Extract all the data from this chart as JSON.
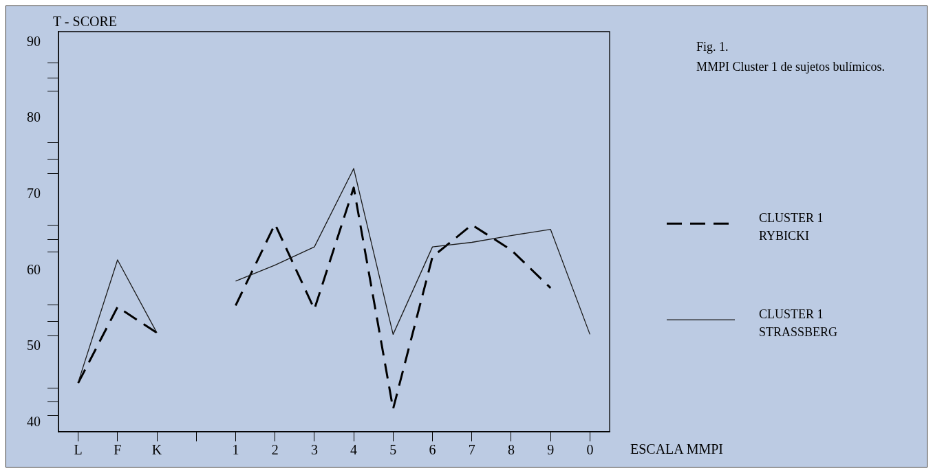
{
  "chart_data": {
    "type": "line",
    "title": "Fig. 1.",
    "subtitle": "MMPI Cluster 1 de sujetos bulímicos.",
    "xlabel": "ESCALA MMPI",
    "ylabel": "T - SCORE",
    "categories": [
      "L",
      "F",
      "K",
      null,
      "1",
      "2",
      "3",
      "4",
      "5",
      "6",
      "7",
      "8",
      "9",
      "0"
    ],
    "series": [
      {
        "name": "CLUSTER 1 RYBICKI",
        "color": "#000000",
        "line_style": "dashed",
        "values": [
          45.2,
          55.2,
          51.8,
          null,
          55.4,
          66.1,
          54.9,
          70.9,
          41.8,
          61.8,
          66.0,
          62.7,
          57.7,
          null
        ]
      },
      {
        "name": "CLUSTER 1 STRASSBERG",
        "color": "#1a1a1a",
        "line_style": "solid",
        "values": [
          45.3,
          61.4,
          51.8,
          null,
          58.6,
          60.7,
          63.1,
          73.4,
          51.6,
          63.1,
          63.7,
          64.6,
          65.4,
          51.6
        ]
      }
    ],
    "ylim": [
      38.8,
      91.4
    ],
    "yticks": [
      40,
      {
        "value": 40.9,
        "label": null
      },
      {
        "value": 42.7,
        "label": null
      },
      {
        "value": 44.5,
        "label": null
      },
      50,
      {
        "value": 51.4,
        "label": null
      },
      {
        "value": 53.3,
        "label": null
      },
      {
        "value": 55.5,
        "label": null
      },
      60,
      {
        "value": 62.4,
        "label": null
      },
      {
        "value": 64.1,
        "label": null
      },
      {
        "value": 66.0,
        "label": null
      },
      70,
      {
        "value": 72.7,
        "label": null
      },
      {
        "value": 74.6,
        "label": null
      },
      {
        "value": 76.8,
        "label": null
      },
      80,
      {
        "value": 83.6,
        "label": null
      },
      {
        "value": 85.3,
        "label": null
      },
      {
        "value": 87.3,
        "label": null
      },
      90
    ],
    "grid": false,
    "legend": "right",
    "marker": "none"
  }
}
